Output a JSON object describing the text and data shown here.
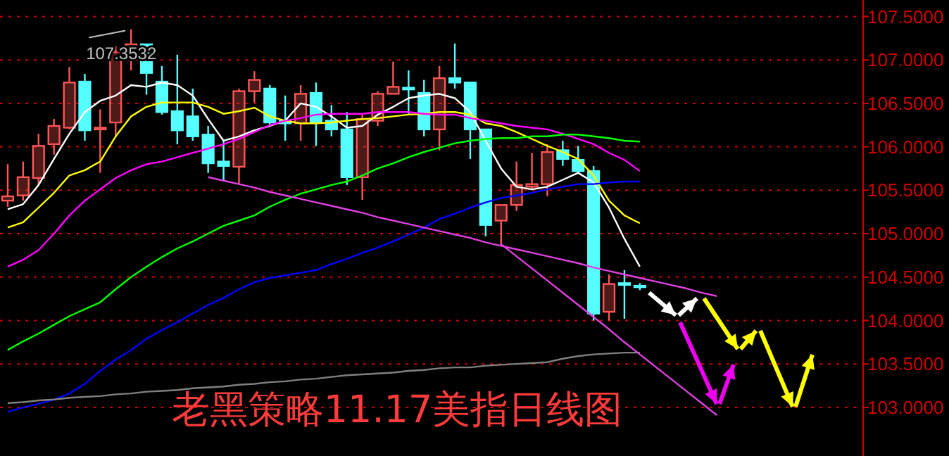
{
  "chart_data": {
    "type": "candlestick",
    "title": "老黑策略11.17美指日线图",
    "categories": [
      null,
      null,
      null,
      null,
      null,
      null,
      null,
      null,
      null,
      null,
      null,
      null,
      null,
      null,
      null,
      null,
      null,
      null,
      null,
      null,
      null,
      null,
      null,
      null,
      null,
      null,
      null,
      null,
      null,
      null,
      null,
      null,
      null,
      null,
      null,
      null,
      null,
      null,
      null,
      null,
      null,
      null,
      null,
      null,
      null,
      null,
      null
    ],
    "ohlc": [
      [
        105.38,
        105.8,
        105.31,
        105.43
      ],
      [
        105.44,
        105.83,
        105.38,
        105.65
      ],
      [
        105.64,
        106.15,
        105.56,
        106.01
      ],
      [
        106.03,
        106.32,
        105.91,
        106.24
      ],
      [
        106.22,
        106.92,
        106.2,
        106.74
      ],
      [
        106.75,
        106.84,
        106.07,
        106.19
      ],
      [
        106.2,
        106.43,
        105.7,
        106.22
      ],
      [
        106.28,
        107.16,
        106.11,
        107.09
      ],
      [
        107.11,
        107.3532,
        106.88,
        107.18
      ],
      [
        107.18,
        107.18,
        106.6,
        106.85
      ],
      [
        106.75,
        106.93,
        106.37,
        106.4
      ],
      [
        106.41,
        107.06,
        106.03,
        106.19
      ],
      [
        106.35,
        106.67,
        106.07,
        106.12
      ],
      [
        106.14,
        106.24,
        105.7,
        105.81
      ],
      [
        105.83,
        106.07,
        105.6,
        105.78
      ],
      [
        105.77,
        106.67,
        105.57,
        106.64
      ],
      [
        106.64,
        106.87,
        106.51,
        106.77
      ],
      [
        106.67,
        106.71,
        106.24,
        106.28
      ],
      [
        106.3,
        106.59,
        106.07,
        106.27
      ],
      [
        106.27,
        106.71,
        106.07,
        106.61
      ],
      [
        106.62,
        106.74,
        106.01,
        106.28
      ],
      [
        106.3,
        106.48,
        106.12,
        106.2
      ],
      [
        106.2,
        106.4,
        105.56,
        105.65
      ],
      [
        105.65,
        106.37,
        105.39,
        106.32
      ],
      [
        106.3,
        106.64,
        106.24,
        106.61
      ],
      [
        106.61,
        106.98,
        106.61,
        106.69
      ],
      [
        106.68,
        106.88,
        106.37,
        106.66
      ],
      [
        106.62,
        106.77,
        106.12,
        106.2
      ],
      [
        106.2,
        106.93,
        105.96,
        106.79
      ],
      [
        106.79,
        107.19,
        106.67,
        106.74
      ],
      [
        106.74,
        106.75,
        105.86,
        106.2
      ],
      [
        106.2,
        106.2,
        104.97,
        105.1
      ],
      [
        105.15,
        105.33,
        104.87,
        105.33
      ],
      [
        105.33,
        105.83,
        105.26,
        105.56
      ],
      [
        105.54,
        105.93,
        105.51,
        105.57
      ],
      [
        105.57,
        106.03,
        105.43,
        105.94
      ],
      [
        105.96,
        106.07,
        105.78,
        105.86
      ],
      [
        105.85,
        106.01,
        105.7,
        105.72
      ],
      [
        105.72,
        105.78,
        104.0,
        104.08
      ],
      [
        104.1,
        104.53,
        104.0,
        104.42
      ],
      [
        104.43,
        104.58,
        104.02,
        104.41
      ],
      [
        104.4,
        104.43,
        104.35,
        104.39
      ],
      null,
      null,
      null,
      null,
      null
    ],
    "colors": [
      "#ff5555",
      "#ff5555",
      "#ff5555",
      "#ff5555",
      "#ff5555",
      "#55ffff",
      "#ff5555",
      "#ff5555",
      "#ff5555",
      "#55ffff",
      "#55ffff",
      "#55ffff",
      "#55ffff",
      "#55ffff",
      "#55ffff",
      "#ff5555",
      "#ff5555",
      "#55ffff",
      "#55ffff",
      "#ff5555",
      "#55ffff",
      "#55ffff",
      "#55ffff",
      "#ff5555",
      "#ff5555",
      "#ff5555",
      "#55ffff",
      "#55ffff",
      "#ff5555",
      "#55ffff",
      "#55ffff",
      "#55ffff",
      "#ff5555",
      "#ff5555",
      "#ff5555",
      "#ff5555",
      "#55ffff",
      "#55ffff",
      "#55ffff",
      "#ff5555",
      "#55ffff",
      "#55ffff",
      null,
      null,
      null,
      null,
      null
    ],
    "series": [
      {
        "type": "line",
        "color": "#ffffff",
        "values": [
          105.28,
          105.34,
          105.56,
          105.86,
          106.15,
          106.4,
          106.53,
          106.59,
          106.71,
          106.69,
          106.74,
          106.71,
          106.59,
          106.32,
          106.07,
          106.12,
          106.19,
          106.24,
          106.3,
          106.5,
          106.46,
          106.35,
          106.22,
          106.24,
          106.37,
          106.46,
          106.56,
          106.59,
          106.61,
          106.56,
          106.4,
          106.07,
          105.75,
          105.54,
          105.51,
          105.54,
          105.62,
          105.7,
          105.59,
          105.3,
          104.94,
          104.62,
          null,
          null,
          null,
          null,
          null
        ]
      },
      {
        "type": "line",
        "color": "#ffff00",
        "values": [
          105.07,
          105.13,
          105.3,
          105.47,
          105.67,
          105.73,
          105.83,
          106.12,
          106.35,
          106.46,
          106.51,
          106.51,
          106.51,
          106.46,
          106.38,
          106.41,
          106.45,
          106.35,
          106.3,
          106.27,
          106.27,
          106.28,
          106.3,
          106.32,
          106.33,
          106.35,
          106.37,
          106.38,
          106.4,
          106.4,
          106.37,
          106.27,
          106.24,
          106.17,
          106.09,
          106.01,
          105.94,
          105.86,
          105.67,
          105.38,
          105.21,
          105.12,
          null,
          null,
          null,
          null,
          null
        ]
      },
      {
        "type": "line",
        "color": "#ff00ff",
        "values": [
          104.62,
          104.7,
          104.81,
          105.0,
          105.21,
          105.38,
          105.51,
          105.64,
          105.73,
          105.8,
          105.83,
          105.88,
          105.93,
          105.98,
          106.03,
          106.09,
          106.17,
          106.25,
          106.3,
          106.33,
          106.37,
          106.38,
          106.38,
          106.38,
          106.4,
          106.4,
          106.4,
          106.38,
          106.37,
          106.37,
          106.33,
          106.3,
          106.27,
          106.24,
          106.22,
          106.2,
          106.15,
          106.09,
          106.03,
          105.93,
          105.85,
          105.72,
          null,
          null,
          null,
          null,
          null
        ]
      },
      {
        "type": "line",
        "color": "#00ff00",
        "values": [
          103.66,
          103.76,
          103.85,
          103.95,
          104.05,
          104.13,
          104.21,
          104.36,
          104.5,
          104.62,
          104.73,
          104.83,
          104.91,
          105.0,
          105.09,
          105.15,
          105.21,
          105.31,
          105.39,
          105.46,
          105.51,
          105.56,
          105.6,
          105.67,
          105.75,
          105.81,
          105.88,
          105.94,
          105.99,
          106.04,
          106.07,
          106.09,
          106.1,
          106.1,
          106.12,
          106.12,
          106.14,
          106.14,
          106.12,
          106.1,
          106.07,
          106.06,
          null,
          null,
          null,
          null,
          null
        ]
      },
      {
        "type": "line",
        "color": "#0000ff",
        "values": [
          102.95,
          103.0,
          103.04,
          103.09,
          103.16,
          103.27,
          103.42,
          103.55,
          103.66,
          103.79,
          103.89,
          103.98,
          104.08,
          104.18,
          104.26,
          104.36,
          104.44,
          104.49,
          104.52,
          104.55,
          104.58,
          104.65,
          104.71,
          104.78,
          104.84,
          104.91,
          104.99,
          105.07,
          105.17,
          105.23,
          105.3,
          105.36,
          105.41,
          105.44,
          105.47,
          105.51,
          105.54,
          105.57,
          105.57,
          105.59,
          105.6,
          105.6,
          null,
          null,
          null,
          null,
          null
        ]
      },
      {
        "type": "line",
        "color": "#808080",
        "values": [
          103.05,
          103.06,
          103.08,
          103.09,
          103.11,
          103.12,
          103.13,
          103.15,
          103.16,
          103.18,
          103.19,
          103.2,
          103.22,
          103.23,
          103.24,
          103.26,
          103.27,
          103.29,
          103.3,
          103.32,
          103.33,
          103.35,
          103.37,
          103.38,
          103.39,
          103.4,
          103.42,
          103.43,
          103.45,
          103.46,
          103.46,
          103.48,
          103.49,
          103.5,
          103.51,
          103.52,
          103.56,
          103.59,
          103.61,
          103.62,
          103.63,
          103.63,
          null,
          null,
          null,
          null,
          null
        ]
      },
      {
        "type": "line",
        "color": "#e040e0",
        "values": [
          null,
          null,
          null,
          null,
          null,
          null,
          null,
          null,
          null,
          null,
          null,
          null,
          null,
          105.65,
          105.61,
          105.57,
          105.53,
          105.48,
          105.44,
          105.4,
          105.36,
          105.32,
          105.28,
          105.24,
          105.19,
          105.15,
          105.11,
          105.07,
          105.03,
          104.99,
          104.95,
          104.9,
          104.86,
          104.82,
          104.78,
          104.74,
          104.7,
          104.66,
          104.61,
          104.57,
          104.53,
          104.49,
          104.45,
          104.41,
          104.37,
          104.32,
          104.28
        ]
      },
      {
        "type": "line",
        "color": "#e040e0",
        "values": [
          null,
          null,
          null,
          null,
          null,
          null,
          null,
          null,
          null,
          null,
          null,
          null,
          null,
          null,
          null,
          null,
          null,
          null,
          null,
          null,
          null,
          null,
          null,
          null,
          null,
          null,
          null,
          null,
          null,
          null,
          null,
          null,
          104.88,
          104.74,
          104.6,
          104.46,
          104.32,
          104.18,
          104.04,
          103.9,
          103.75,
          103.61,
          103.47,
          103.33,
          103.19,
          103.05,
          102.91
        ]
      }
    ],
    "ylim": [
      102.44,
      107.69
    ],
    "yticks": [
      {
        "value": 103,
        "label": "103.0000"
      },
      {
        "value": 103.5,
        "label": "103.5000"
      },
      {
        "value": 104,
        "label": "104.0000"
      },
      {
        "value": 104.5,
        "label": "104.5000"
      },
      {
        "value": 105,
        "label": "105.0000"
      },
      {
        "value": 105.5,
        "label": "105.5000"
      },
      {
        "value": 106,
        "label": "106.0000"
      },
      {
        "value": 106.5,
        "label": "106.5000"
      },
      {
        "value": 107,
        "label": "107.0000"
      },
      {
        "value": 107.5,
        "label": "107.5000"
      }
    ],
    "grid": "y",
    "tick_labels": "y",
    "annotations": [
      "107.3532"
    ]
  }
}
